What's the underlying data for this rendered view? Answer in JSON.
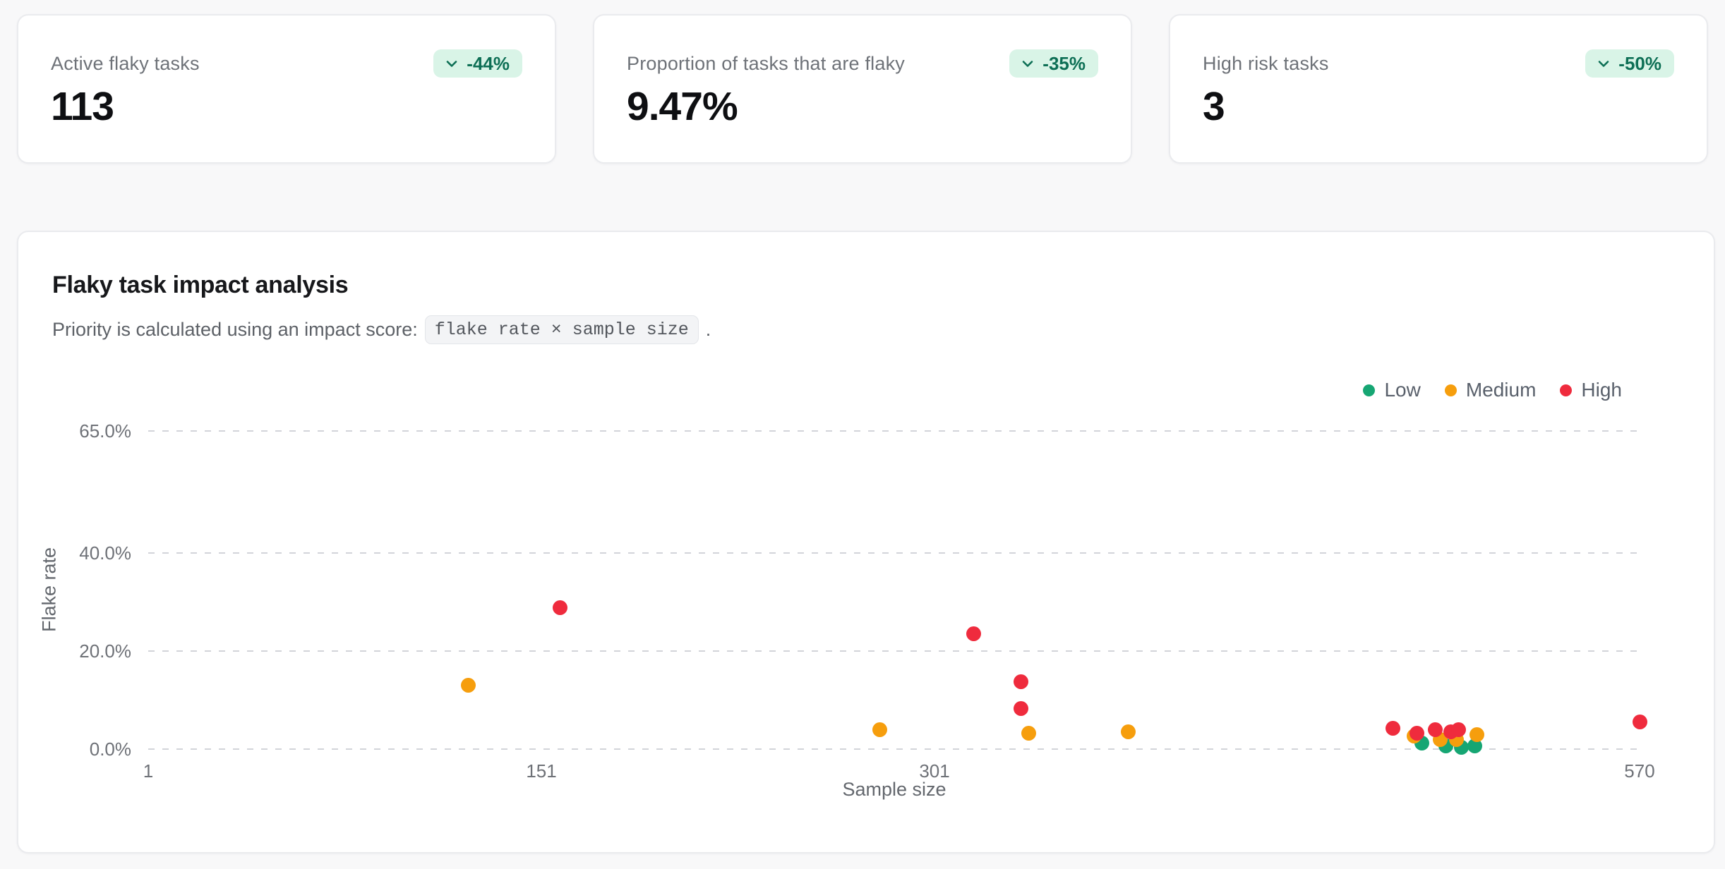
{
  "stat_cards": [
    {
      "label": "Active flaky tasks",
      "value": "113",
      "badge": "-44%"
    },
    {
      "label": "Proportion of tasks that are flaky",
      "value": "9.47%",
      "badge": "-35%"
    },
    {
      "label": "High risk tasks",
      "value": "3",
      "badge": "-50%"
    }
  ],
  "badge_style": {
    "bg": "#d9f4e7",
    "text": "#0d6f55",
    "icon": "chevron-down-icon"
  },
  "chart_card": {
    "title": "Flaky task impact analysis",
    "subtitle_prefix": "Priority is calculated using an impact score:",
    "subtitle_code": "flake rate × sample size",
    "subtitle_suffix": "."
  },
  "chart_data": {
    "type": "scatter",
    "title": "Flaky task impact analysis",
    "xlabel": "Sample size",
    "ylabel": "Flake rate",
    "xlim": [
      1,
      570
    ],
    "ylim": [
      0,
      65
    ],
    "x_ticks": [
      1,
      151,
      301,
      570
    ],
    "y_ticks": [
      {
        "value": 0,
        "label": "0.0%"
      },
      {
        "value": 20,
        "label": "20.0%"
      },
      {
        "value": 40,
        "label": "40.0%"
      },
      {
        "value": 65,
        "label": "65.0%"
      }
    ],
    "grid": "dashed-horizontal",
    "legend_position": "top-right",
    "legend": [
      {
        "name": "Low",
        "color": "#16a673"
      },
      {
        "name": "Medium",
        "color": "#f69e0d"
      },
      {
        "name": "High",
        "color": "#ef2b3d"
      }
    ],
    "series": [
      {
        "name": "Low",
        "color": "#16a673",
        "points": [
          {
            "x": 487,
            "y": 1.2
          },
          {
            "x": 496,
            "y": 0.7
          },
          {
            "x": 502,
            "y": 0.4
          },
          {
            "x": 507,
            "y": 0.7
          }
        ]
      },
      {
        "name": "Medium",
        "color": "#f69e0d",
        "points": [
          {
            "x": 123,
            "y": 13.1
          },
          {
            "x": 280,
            "y": 4.0
          },
          {
            "x": 337,
            "y": 3.3
          },
          {
            "x": 375,
            "y": 3.5
          },
          {
            "x": 484,
            "y": 2.6
          },
          {
            "x": 494,
            "y": 1.9
          },
          {
            "x": 500,
            "y": 1.9
          },
          {
            "x": 508,
            "y": 2.9
          }
        ]
      },
      {
        "name": "High",
        "color": "#ef2b3d",
        "points": [
          {
            "x": 158,
            "y": 28.9
          },
          {
            "x": 316,
            "y": 23.6
          },
          {
            "x": 334,
            "y": 13.8
          },
          {
            "x": 334,
            "y": 8.3
          },
          {
            "x": 476,
            "y": 4.2
          },
          {
            "x": 485,
            "y": 3.3
          },
          {
            "x": 492,
            "y": 3.9
          },
          {
            "x": 498,
            "y": 3.6
          },
          {
            "x": 501,
            "y": 3.9
          },
          {
            "x": 570,
            "y": 5.5
          }
        ]
      }
    ]
  }
}
